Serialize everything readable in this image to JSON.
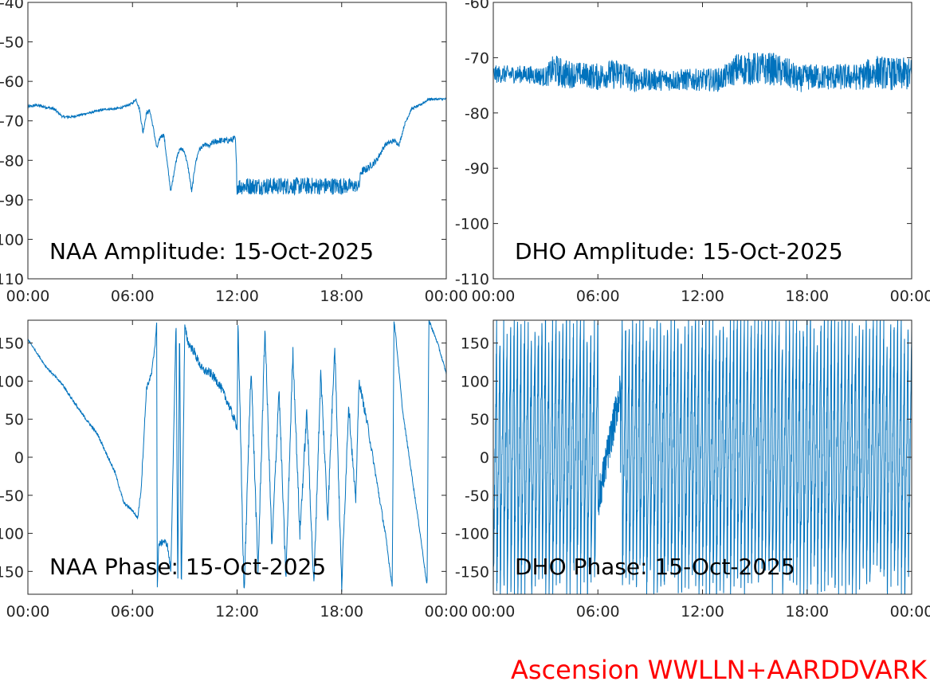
{
  "footer_text": "Ascension WWLLN+AARDDVARK",
  "line_color": "#0072bd",
  "footer_color": "#ff0000",
  "chart_data": [
    {
      "type": "line",
      "title": "NAA Amplitude: 15-Oct-2025",
      "x_tick_labels": [
        "00:00",
        "06:00",
        "12:00",
        "18:00",
        "00:00"
      ],
      "x_ticks_hours": [
        0,
        6,
        12,
        18,
        24
      ],
      "xlim": [
        0,
        24
      ],
      "ylim": [
        -110,
        -40
      ],
      "y_ticks": [
        -40,
        -50,
        -60,
        -70,
        -80,
        -90,
        -100,
        -110
      ],
      "y_tick_labels": [
        "-40",
        "-50",
        "-60",
        "-70",
        "-80",
        "-90",
        "-100",
        "-110"
      ],
      "x": [
        0,
        0.5,
        1,
        1.5,
        2,
        2.5,
        3,
        3.5,
        4,
        4.5,
        5,
        5.5,
        6,
        6.2,
        6.4,
        6.6,
        6.8,
        7.0,
        7.2,
        7.4,
        7.6,
        7.8,
        8.0,
        8.2,
        8.4,
        8.6,
        8.8,
        9.0,
        9.2,
        9.4,
        9.6,
        9.8,
        10.0,
        10.2,
        10.4,
        10.6,
        11,
        11.5,
        11.9,
        12.0,
        12.5,
        13,
        14,
        15,
        16,
        17,
        18,
        19,
        19.1,
        19.5,
        20,
        20.5,
        21,
        21.3,
        21.6,
        22,
        22.5,
        23,
        23.5,
        24
      ],
      "values": [
        -66.5,
        -66,
        -66.5,
        -67,
        -69,
        -69,
        -68.5,
        -68,
        -67.5,
        -67,
        -67,
        -66.5,
        -65.5,
        -64.5,
        -67,
        -73,
        -68,
        -67.5,
        -72,
        -77,
        -74,
        -73.5,
        -81,
        -88,
        -82.5,
        -78,
        -77,
        -78,
        -82,
        -88,
        -81,
        -77.5,
        -76.5,
        -76,
        -76.5,
        -75.5,
        -75,
        -75,
        -74.5,
        -86.5,
        -86.5,
        -86.5,
        -86.5,
        -86.5,
        -86.5,
        -86.5,
        -86.5,
        -86.5,
        -83,
        -82,
        -80,
        -76,
        -75,
        -76,
        -71,
        -67,
        -66,
        -64.5,
        -64.5,
        -64.5
      ],
      "noise": [
        0.4,
        0.4,
        0.4,
        0.4,
        0.3,
        0.3,
        0.3,
        0.3,
        0.3,
        0.3,
        0.3,
        0.3,
        0.3,
        0.3,
        0.5,
        0.5,
        0.5,
        0.5,
        0.5,
        0.5,
        0.5,
        0.5,
        0.5,
        0.5,
        0.5,
        0.5,
        0.5,
        0.5,
        0.5,
        0.5,
        0.5,
        0.5,
        0.5,
        0.5,
        0.5,
        0.8,
        0.8,
        0.8,
        0.8,
        2.2,
        2.2,
        2.2,
        2.2,
        2.2,
        2.2,
        2.2,
        2.2,
        1.5,
        1.0,
        1.0,
        0.8,
        0.6,
        0.6,
        0.5,
        0.4,
        0.4,
        0.3,
        0.3,
        0.3,
        0.3
      ]
    },
    {
      "type": "line",
      "title": "DHO Amplitude: 15-Oct-2025",
      "x_tick_labels": [
        "00:00",
        "06:00",
        "12:00",
        "18:00",
        "00:00"
      ],
      "x_ticks_hours": [
        0,
        6,
        12,
        18,
        24
      ],
      "xlim": [
        0,
        24
      ],
      "ylim": [
        -110,
        -60
      ],
      "y_ticks": [
        -60,
        -70,
        -80,
        -90,
        -100,
        -110
      ],
      "y_tick_labels": [
        "-60",
        "-70",
        "-80",
        "-90",
        "-100",
        "-110"
      ],
      "x": [
        0,
        2,
        3,
        3.5,
        4,
        5,
        6,
        6.5,
        7,
        7.5,
        8,
        9,
        10,
        11,
        12,
        13,
        13.5,
        14,
        15,
        16,
        17,
        17.5,
        18,
        19,
        20,
        21,
        21.5,
        22,
        23,
        24
      ],
      "values": [
        -73,
        -73,
        -73.5,
        -72,
        -73,
        -73,
        -73.5,
        -73,
        -73,
        -73,
        -74,
        -74,
        -74,
        -74,
        -74,
        -74,
        -73,
        -72,
        -72,
        -72,
        -73,
        -74,
        -73.5,
        -73.5,
        -73.5,
        -73.5,
        -73,
        -72.5,
        -73,
        -73
      ],
      "noise": [
        1.6,
        1.6,
        1.8,
        2.8,
        2.8,
        2.2,
        2.5,
        2.5,
        2.8,
        2.8,
        2.2,
        2.0,
        2.0,
        2.0,
        2.0,
        2.2,
        2.2,
        3.0,
        3.0,
        3.0,
        2.8,
        2.4,
        2.4,
        2.4,
        2.4,
        2.4,
        2.8,
        3.0,
        3.0,
        3.0
      ]
    },
    {
      "type": "line",
      "title": "NAA Phase: 15-Oct-2025",
      "x_tick_labels": [
        "00:00",
        "06:00",
        "12:00",
        "18:00",
        "00:00"
      ],
      "x_ticks_hours": [
        0,
        6,
        12,
        18,
        24
      ],
      "xlim": [
        0,
        24
      ],
      "ylim": [
        -180,
        180
      ],
      "y_ticks": [
        150,
        100,
        50,
        0,
        -50,
        -100,
        -150
      ],
      "y_tick_labels": [
        "150",
        "100",
        "50",
        "0",
        "-50",
        "-100",
        "-150"
      ],
      "x": [
        0,
        1,
        2,
        3,
        4,
        5,
        5.5,
        6,
        6.3,
        6.5,
        6.8,
        7.1,
        7.3,
        7.4,
        7.41,
        7.5,
        7.8,
        8.0,
        8.2,
        8.5,
        8.6,
        8.7,
        8.8,
        9.0,
        9.2,
        9.5,
        10,
        10.5,
        11,
        11.5,
        12,
        12.05,
        12.4,
        12.8,
        13.2,
        13.6,
        14,
        14.4,
        14.8,
        15.2,
        15.6,
        16,
        16.4,
        16.8,
        17.2,
        17.6,
        18,
        18.4,
        18.8,
        19.0,
        19.5,
        20,
        20.5,
        20.9,
        21.0,
        21.1,
        21.5,
        22,
        22.5,
        22.9,
        23.0,
        23.5,
        24
      ],
      "values": [
        155,
        120,
        95,
        60,
        30,
        -20,
        -60,
        -70,
        -80,
        -40,
        90,
        110,
        150,
        180,
        -180,
        -115,
        -110,
        -115,
        -150,
        180,
        -180,
        180,
        -180,
        170,
        150,
        140,
        115,
        110,
        95,
        70,
        40,
        180,
        -180,
        120,
        -150,
        170,
        -120,
        90,
        -160,
        140,
        -100,
        60,
        -170,
        110,
        -80,
        150,
        -170,
        70,
        -60,
        100,
        40,
        -30,
        -100,
        -170,
        180,
        160,
        60,
        -20,
        -100,
        -170,
        180,
        150,
        110
      ],
      "noise": [
        1,
        1,
        2,
        2,
        2,
        2,
        2,
        2,
        2,
        4,
        4,
        4,
        4,
        0,
        0,
        4,
        4,
        4,
        4,
        0,
        0,
        0,
        0,
        6,
        6,
        6,
        6,
        6,
        6,
        6,
        6,
        10,
        10,
        10,
        10,
        10,
        10,
        10,
        10,
        10,
        10,
        10,
        10,
        10,
        10,
        10,
        10,
        8,
        8,
        6,
        6,
        4,
        4,
        2,
        2,
        2,
        2,
        2,
        2,
        2,
        2,
        2,
        2
      ]
    },
    {
      "type": "line",
      "title": "DHO Phase: 15-Oct-2025",
      "x_tick_labels": [
        "00:00",
        "06:00",
        "12:00",
        "18:00",
        "00:00"
      ],
      "x_ticks_hours": [
        0,
        6,
        12,
        18,
        24
      ],
      "xlim": [
        0,
        24
      ],
      "ylim": [
        -180,
        180
      ],
      "y_ticks": [
        150,
        100,
        50,
        0,
        -50,
        -100,
        -150
      ],
      "y_tick_labels": [
        "150",
        "100",
        "50",
        "0",
        "-50",
        "-100",
        "-150"
      ],
      "wrap_period_hours": 0.2,
      "gap_hours": [
        6.0,
        7.3
      ],
      "noise_amplitude": 25
    }
  ]
}
